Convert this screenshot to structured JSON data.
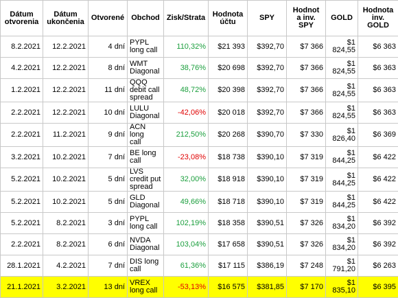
{
  "table": {
    "header": [
      "Dátum\notvorenia",
      "Dátum\nukončenia",
      "Otvorené",
      "Obchod",
      "Zisk/Strata",
      "Hodnota\núčtu",
      "SPY",
      "Hodnot\na inv.\nSPY",
      "GOLD",
      "Hodnota\ninv.\nGOLD"
    ],
    "rows": [
      [
        "8.2.2021",
        "12.2.2021",
        "4 dní",
        "PYPL\nlong call",
        "110,32%",
        "$21 393",
        "$392,70",
        "$7 366",
        "$1 824,55",
        "$6 363"
      ],
      [
        "4.2.2021",
        "12.2.2021",
        "8 dní",
        "WMT\nDiagonal",
        "38,76%",
        "$20 698",
        "$392,70",
        "$7 366",
        "$1 824,55",
        "$6 363"
      ],
      [
        "1.2.2021",
        "12.2.2021",
        "11 dní",
        "QQQ\ndebit call\nspread",
        "48,72%",
        "$20 398",
        "$392,70",
        "$7 366",
        "$1 824,55",
        "$6 363"
      ],
      [
        "2.2.2021",
        "12.2.2021",
        "10 dní",
        "LULU\nDiagonal",
        "-42,06%",
        "$20 018",
        "$392,70",
        "$7 366",
        "$1 824,55",
        "$6 363"
      ],
      [
        "2.2.2021",
        "11.2.2021",
        "9 dní",
        "ACN long\ncall",
        "212,50%",
        "$20 268",
        "$390,70",
        "$7 330",
        "$1 826,40",
        "$6 369"
      ],
      [
        "3.2.2021",
        "10.2.2021",
        "7 dní",
        "BE long\ncall",
        "-23,08%",
        "$18 738",
        "$390,10",
        "$7 319",
        "$1 844,25",
        "$6 422"
      ],
      [
        "5.2.2021",
        "10.2.2021",
        "5 dní",
        "LVS\ncredit put\nspread",
        "32,00%",
        "$18 918",
        "$390,10",
        "$7 319",
        "$1 844,25",
        "$6 422"
      ],
      [
        "5.2.2021",
        "10.2.2021",
        "5 dní",
        "GLD\nDiagonal",
        "49,66%",
        "$18 718",
        "$390,10",
        "$7 319",
        "$1 844,25",
        "$6 422"
      ],
      [
        "5.2.2021",
        "8.2.2021",
        "3 dní",
        "PYPL\nlong call",
        "102,19%",
        "$18 358",
        "$390,51",
        "$7 326",
        "$1 834,20",
        "$6 392"
      ],
      [
        "2.2.2021",
        "8.2.2021",
        "6 dní",
        "NVDA\nDiagonal",
        "103,04%",
        "$17 658",
        "$390,51",
        "$7 326",
        "$1 834,20",
        "$6 392"
      ],
      [
        "28.1.2021",
        "4.2.2021",
        "7 dní",
        "DIS long\ncall",
        "61,36%",
        "$17 115",
        "$386,19",
        "$7 248",
        "$1 791,20",
        "$6 263"
      ],
      [
        "21.1.2021",
        "3.2.2021",
        "13 dní",
        "VREX\nlong call",
        "-53,13%",
        "$16 575",
        "$381,85",
        "$7 170",
        "$1 835,10",
        "$6 395"
      ]
    ]
  }
}
